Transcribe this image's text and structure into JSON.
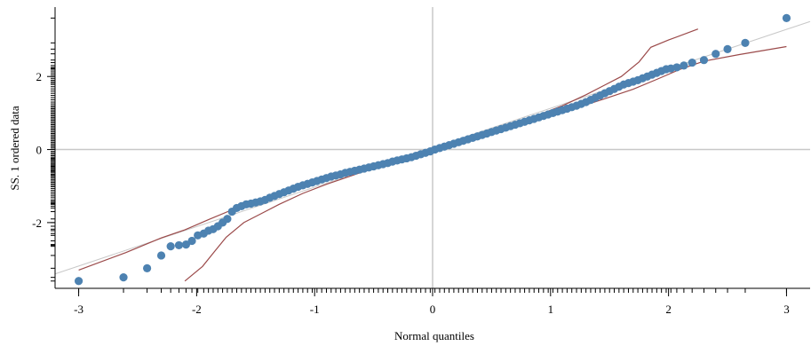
{
  "chart_data": {
    "type": "scatter",
    "title": "",
    "xlabel": "Normal quantiles",
    "ylabel": "SS. 1 ordered data",
    "xlim": [
      -3.2,
      3.2
    ],
    "ylim": [
      -3.8,
      3.9
    ],
    "xticks": [
      -3,
      -2,
      -1,
      0,
      1,
      2,
      3
    ],
    "xtick_labels": [
      "-3",
      "-2",
      "-1",
      "0",
      "1",
      "2",
      "3"
    ],
    "yticks": [
      -2,
      0,
      2
    ],
    "ytick_labels": [
      "-2",
      "0",
      "2"
    ],
    "grid": false,
    "zero_lines": true,
    "legend": "none",
    "colors": {
      "points": "#4d82b1",
      "envelope": "#9b4a4a",
      "reference_line": "#c8c8c8",
      "zero_line": "#c8c8c8",
      "axis": "#000000"
    },
    "reference_line": {
      "slope": 1.08,
      "intercept": 0.05
    },
    "series": [
      {
        "points": [
          [
            -3.0,
            -3.6
          ],
          [
            -2.62,
            -3.5
          ],
          [
            -2.42,
            -3.25
          ],
          [
            -2.3,
            -2.9
          ],
          [
            -2.22,
            -2.65
          ],
          [
            -2.15,
            -2.62
          ],
          [
            -2.09,
            -2.6
          ],
          [
            -2.04,
            -2.5
          ],
          [
            -1.99,
            -2.35
          ],
          [
            -1.94,
            -2.3
          ],
          [
            -1.9,
            -2.22
          ],
          [
            -1.86,
            -2.18
          ],
          [
            -1.82,
            -2.1
          ],
          [
            -1.78,
            -2.0
          ],
          [
            -1.74,
            -1.9
          ],
          [
            -1.7,
            -1.7
          ],
          [
            -1.66,
            -1.6
          ],
          [
            -1.62,
            -1.55
          ],
          [
            -1.58,
            -1.5
          ],
          [
            -1.54,
            -1.48
          ],
          [
            -1.5,
            -1.45
          ],
          [
            -1.46,
            -1.42
          ],
          [
            -1.42,
            -1.38
          ],
          [
            -1.38,
            -1.32
          ],
          [
            -1.34,
            -1.27
          ],
          [
            -1.3,
            -1.22
          ],
          [
            -1.26,
            -1.17
          ],
          [
            -1.22,
            -1.12
          ],
          [
            -1.18,
            -1.07
          ],
          [
            -1.14,
            -1.02
          ],
          [
            -1.1,
            -0.98
          ],
          [
            -1.06,
            -0.94
          ],
          [
            -1.02,
            -0.9
          ],
          [
            -0.98,
            -0.86
          ],
          [
            -0.94,
            -0.82
          ],
          [
            -0.9,
            -0.78
          ],
          [
            -0.86,
            -0.74
          ],
          [
            -0.82,
            -0.71
          ],
          [
            -0.78,
            -0.68
          ],
          [
            -0.74,
            -0.64
          ],
          [
            -0.7,
            -0.61
          ],
          [
            -0.66,
            -0.58
          ],
          [
            -0.62,
            -0.55
          ],
          [
            -0.58,
            -0.52
          ],
          [
            -0.54,
            -0.49
          ],
          [
            -0.5,
            -0.46
          ],
          [
            -0.46,
            -0.43
          ],
          [
            -0.42,
            -0.4
          ],
          [
            -0.38,
            -0.37
          ],
          [
            -0.34,
            -0.33
          ],
          [
            -0.3,
            -0.3
          ],
          [
            -0.26,
            -0.27
          ],
          [
            -0.22,
            -0.24
          ],
          [
            -0.18,
            -0.21
          ],
          [
            -0.14,
            -0.17
          ],
          [
            -0.1,
            -0.13
          ],
          [
            -0.06,
            -0.09
          ],
          [
            -0.02,
            -0.05
          ],
          [
            0.02,
            0.0
          ],
          [
            0.06,
            0.04
          ],
          [
            0.1,
            0.08
          ],
          [
            0.14,
            0.12
          ],
          [
            0.18,
            0.16
          ],
          [
            0.22,
            0.2
          ],
          [
            0.26,
            0.24
          ],
          [
            0.3,
            0.28
          ],
          [
            0.34,
            0.32
          ],
          [
            0.38,
            0.36
          ],
          [
            0.42,
            0.4
          ],
          [
            0.46,
            0.44
          ],
          [
            0.5,
            0.48
          ],
          [
            0.54,
            0.52
          ],
          [
            0.58,
            0.56
          ],
          [
            0.62,
            0.6
          ],
          [
            0.66,
            0.64
          ],
          [
            0.7,
            0.68
          ],
          [
            0.74,
            0.72
          ],
          [
            0.78,
            0.76
          ],
          [
            0.82,
            0.8
          ],
          [
            0.86,
            0.84
          ],
          [
            0.9,
            0.88
          ],
          [
            0.94,
            0.92
          ],
          [
            0.98,
            0.96
          ],
          [
            1.02,
            1.0
          ],
          [
            1.06,
            1.04
          ],
          [
            1.1,
            1.08
          ],
          [
            1.14,
            1.12
          ],
          [
            1.18,
            1.16
          ],
          [
            1.22,
            1.2
          ],
          [
            1.26,
            1.25
          ],
          [
            1.3,
            1.3
          ],
          [
            1.34,
            1.36
          ],
          [
            1.38,
            1.42
          ],
          [
            1.42,
            1.48
          ],
          [
            1.46,
            1.54
          ],
          [
            1.5,
            1.6
          ],
          [
            1.54,
            1.66
          ],
          [
            1.58,
            1.72
          ],
          [
            1.62,
            1.78
          ],
          [
            1.66,
            1.82
          ],
          [
            1.7,
            1.86
          ],
          [
            1.74,
            1.9
          ],
          [
            1.78,
            1.95
          ],
          [
            1.82,
            2.0
          ],
          [
            1.86,
            2.05
          ],
          [
            1.9,
            2.1
          ],
          [
            1.94,
            2.15
          ],
          [
            1.98,
            2.2
          ],
          [
            2.02,
            2.22
          ],
          [
            2.07,
            2.25
          ],
          [
            2.13,
            2.3
          ],
          [
            2.2,
            2.38
          ],
          [
            2.3,
            2.45
          ],
          [
            2.4,
            2.62
          ],
          [
            2.5,
            2.75
          ],
          [
            2.65,
            2.92
          ],
          [
            3.0,
            3.6
          ]
        ]
      }
    ],
    "envelope_lower": [
      [
        -2.1,
        -3.6
      ],
      [
        -1.95,
        -3.2
      ],
      [
        -1.85,
        -2.8
      ],
      [
        -1.75,
        -2.4
      ],
      [
        -1.6,
        -2.0
      ],
      [
        -1.45,
        -1.75
      ],
      [
        -1.3,
        -1.5
      ],
      [
        -1.1,
        -1.2
      ],
      [
        -0.9,
        -0.95
      ],
      [
        -0.6,
        -0.62
      ],
      [
        -0.3,
        -0.33
      ],
      [
        0.0,
        -0.05
      ],
      [
        0.3,
        0.25
      ],
      [
        0.6,
        0.55
      ],
      [
        0.9,
        0.82
      ],
      [
        1.2,
        1.12
      ],
      [
        1.45,
        1.38
      ],
      [
        1.7,
        1.65
      ],
      [
        1.9,
        1.92
      ],
      [
        2.1,
        2.2
      ],
      [
        2.3,
        2.42
      ],
      [
        2.6,
        2.6
      ],
      [
        3.0,
        2.82
      ]
    ],
    "envelope_upper": [
      [
        -3.0,
        -3.3
      ],
      [
        -2.6,
        -2.82
      ],
      [
        -2.3,
        -2.42
      ],
      [
        -2.1,
        -2.2
      ],
      [
        -1.9,
        -1.92
      ],
      [
        -1.7,
        -1.65
      ],
      [
        -1.45,
        -1.38
      ],
      [
        -1.2,
        -1.12
      ],
      [
        -0.9,
        -0.82
      ],
      [
        -0.6,
        -0.55
      ],
      [
        -0.3,
        -0.25
      ],
      [
        0.0,
        0.05
      ],
      [
        0.3,
        0.33
      ],
      [
        0.6,
        0.62
      ],
      [
        0.9,
        0.95
      ],
      [
        1.1,
        1.2
      ],
      [
        1.3,
        1.5
      ],
      [
        1.45,
        1.75
      ],
      [
        1.6,
        2.0
      ],
      [
        1.75,
        2.4
      ],
      [
        1.85,
        2.8
      ],
      [
        2.0,
        3.0
      ],
      [
        2.25,
        3.3
      ]
    ],
    "rug_data": {
      "x": [
        -3.0,
        -2.62,
        -2.42,
        -2.3,
        -2.22,
        -2.15,
        -2.09,
        -2.04,
        -1.99,
        -1.94,
        -1.9,
        -1.86,
        -1.82,
        -1.78,
        -1.74,
        -1.7,
        -1.66,
        -1.62,
        -1.58,
        -1.54,
        -1.5,
        -1.46,
        -1.42,
        -1.38,
        -1.34,
        -1.3,
        -1.26,
        -1.22,
        -1.18,
        -1.14,
        -1.1,
        -1.06,
        -1.02,
        -0.98,
        -0.94,
        -0.9,
        -0.86,
        -0.82,
        -0.78,
        -0.74,
        -0.7,
        -0.66,
        -0.62,
        -0.58,
        -0.54,
        -0.5,
        -0.46,
        -0.42,
        -0.38,
        -0.34,
        -0.3,
        -0.26,
        -0.22,
        -0.18,
        -0.14,
        -0.1,
        -0.06,
        -0.02,
        0.02,
        0.06,
        0.1,
        0.14,
        0.18,
        0.22,
        0.26,
        0.3,
        0.34,
        0.38,
        0.42,
        0.46,
        0.5,
        0.54,
        0.58,
        0.62,
        0.66,
        0.7,
        0.74,
        0.78,
        0.82,
        0.86,
        0.9,
        0.94,
        0.98,
        1.02,
        1.06,
        1.1,
        1.14,
        1.18,
        1.22,
        1.26,
        1.3,
        1.34,
        1.38,
        1.42,
        1.46,
        1.5,
        1.54,
        1.58,
        1.62,
        1.66,
        1.7,
        1.74,
        1.78,
        1.82,
        1.86,
        1.9,
        1.94,
        1.98,
        2.02,
        2.07,
        2.13,
        2.2,
        2.3,
        2.4,
        2.5,
        2.65,
        3.0
      ],
      "y": [
        -3.6,
        -3.5,
        -3.25,
        -2.9,
        -2.65,
        -2.62,
        -2.6,
        -2.5,
        -2.35,
        -2.3,
        -2.22,
        -2.18,
        -2.1,
        -2.0,
        -1.9,
        -1.7,
        -1.6,
        -1.55,
        -1.5,
        -1.48,
        -1.45,
        -1.42,
        -1.38,
        -1.32,
        -1.27,
        -1.22,
        -1.17,
        -1.12,
        -1.07,
        -1.02,
        -0.98,
        -0.94,
        -0.9,
        -0.86,
        -0.82,
        -0.78,
        -0.74,
        -0.71,
        -0.68,
        -0.64,
        -0.61,
        -0.58,
        -0.55,
        -0.52,
        -0.49,
        -0.46,
        -0.43,
        -0.4,
        -0.37,
        -0.33,
        -0.3,
        -0.27,
        -0.24,
        -0.21,
        -0.17,
        -0.13,
        -0.09,
        -0.05,
        0.0,
        0.04,
        0.08,
        0.12,
        0.16,
        0.2,
        0.24,
        0.28,
        0.32,
        0.36,
        0.4,
        0.44,
        0.48,
        0.52,
        0.56,
        0.6,
        0.64,
        0.68,
        0.72,
        0.76,
        0.8,
        0.84,
        0.88,
        0.92,
        0.96,
        1.0,
        1.04,
        1.08,
        1.12,
        1.16,
        1.2,
        1.25,
        1.3,
        1.36,
        1.42,
        1.48,
        1.54,
        1.6,
        1.66,
        1.72,
        1.78,
        1.82,
        1.86,
        1.9,
        1.95,
        2.0,
        2.05,
        2.1,
        2.15,
        2.2,
        2.22,
        2.25,
        2.3,
        2.38,
        2.45,
        2.62,
        2.75,
        2.92,
        3.6
      ]
    }
  }
}
